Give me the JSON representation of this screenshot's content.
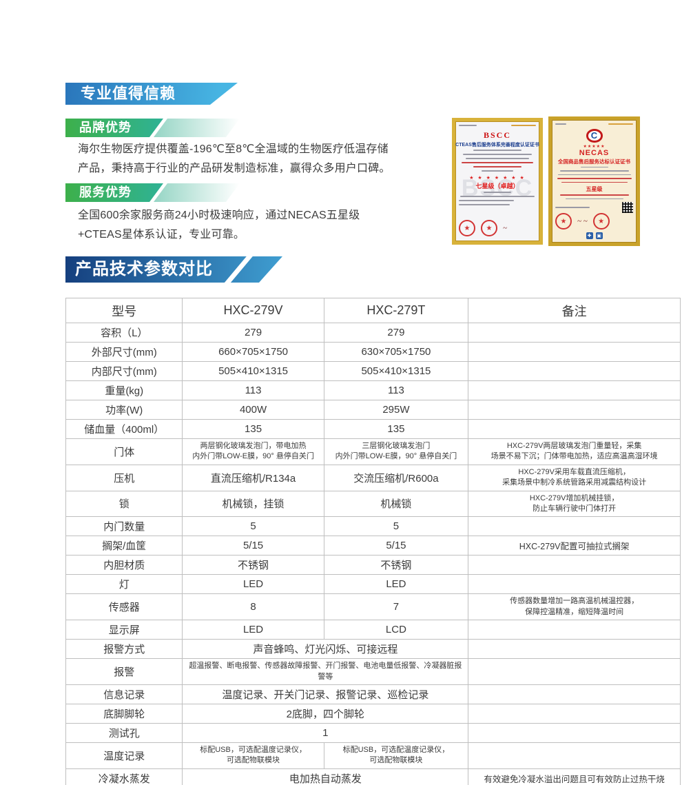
{
  "header": {
    "title_banner": "专业值得信赖",
    "brand": {
      "title": "品牌优势",
      "body": "海尔生物医疗提供覆盖-196℃至8℃全温域的生物医疗低温存储产品，秉持高于行业的产品研发制造标准，赢得众多用户口碑。"
    },
    "service": {
      "title": "服务优势",
      "body": "全国600余家服务商24小时极速响应，通过NECAS五星级+CTEAS星体系认证，专业可靠。"
    }
  },
  "certificates": {
    "bscc": {
      "brand": "BSCC",
      "title": "CTEAS售后服务体系完善程度认证证书",
      "stars": "★ ★ ★ ★ ★ ★ ★",
      "grade": "七星级（卓越）",
      "watermark": "BSCC",
      "stamp_star": "★"
    },
    "necas": {
      "emblem_letter": "C",
      "stars": "★★★★★",
      "brand": "NECAS",
      "title": "全国商品售后服务达标认证证书",
      "grade": "五星级",
      "stamp_star": "★"
    }
  },
  "table_section": {
    "banner": "产品技术参数对比"
  },
  "table": {
    "headers": [
      "型号",
      "HXC-279V",
      "HXC-279T",
      "备注"
    ],
    "rows": [
      {
        "label": "容积（L）",
        "v1": "279",
        "v2": "279",
        "remark": ""
      },
      {
        "label": "外部尺寸(mm)",
        "v1": "660×705×1750",
        "v2": "630×705×1750",
        "remark": ""
      },
      {
        "label": "内部尺寸(mm)",
        "v1": "505×410×1315",
        "v2": "505×410×1315",
        "remark": ""
      },
      {
        "label": "重量(kg)",
        "v1": "113",
        "v2": "113",
        "remark": ""
      },
      {
        "label": "功率(W)",
        "v1": "400W",
        "v2": "295W",
        "remark": ""
      },
      {
        "label": "储血量（400ml）",
        "v1": "135",
        "v2": "135",
        "remark": ""
      },
      {
        "label": "门体",
        "v1": "两层钢化玻璃发泡门，带电加热\n内外门带LOW-E膜，90° 悬停自关门",
        "v2": "三层钢化玻璃发泡门\n内外门带LOW-E膜，90° 悬停自关门",
        "remark": "HXC-279V两层玻璃发泡门重量轻，采集\n场景不易下沉；门体带电加热，适应高温高湿环境",
        "sm": true
      },
      {
        "label": "压机",
        "v1": "直流压缩机/R134a",
        "v2": "交流压缩机/R600a",
        "remark": "HXC-279V采用车载直流压缩机，\n采集场景中制冷系统管路采用减震结构设计"
      },
      {
        "label": "锁",
        "v1": "机械锁，挂锁",
        "v2": "机械锁",
        "remark": "HXC-279V增加机械挂锁，\n防止车辆行驶中门体打开"
      },
      {
        "label": "内门数量",
        "v1": "5",
        "v2": "5",
        "remark": ""
      },
      {
        "label": "搁架/血筐",
        "v1": "5/15",
        "v2": "5/15",
        "remark": "HXC-279V配置可抽拉式搁架"
      },
      {
        "label": "内胆材质",
        "v1": "不锈钢",
        "v2": "不锈钢",
        "remark": ""
      },
      {
        "label": "灯",
        "v1": "LED",
        "v2": "LED",
        "remark": ""
      },
      {
        "label": "传感器",
        "v1": "8",
        "v2": "7",
        "remark": "传感器数量增加一路高温机械温控器，\n保障控温精准，缩短降温时间"
      },
      {
        "label": "显示屏",
        "v1": "LED",
        "v2": "LCD",
        "remark": ""
      },
      {
        "label": "报警方式",
        "merged": "声音蜂鸣、灯光闪烁、可接远程",
        "remark": ""
      },
      {
        "label": "报警",
        "merged": "超温报警、断电报警、传感器故障报警、开门报警、电池电量低报警、冷凝器脏报警等",
        "remark": "",
        "sm": true
      },
      {
        "label": "信息记录",
        "merged": "温度记录、开关门记录、报警记录、巡检记录",
        "remark": ""
      },
      {
        "label": "底脚脚轮",
        "merged": "2底脚，四个脚轮",
        "remark": ""
      },
      {
        "label": "测试孔",
        "merged": "1",
        "remark": ""
      },
      {
        "label": "温度记录",
        "v1": "标配USB，可选配温度记录仪，\n可选配物联模块",
        "v2": "标配USB，可选配温度记录仪，\n可选配物联模块",
        "remark": "",
        "sm": true
      },
      {
        "label": "冷凝水蒸发",
        "merged": "电加热自动蒸发",
        "remark": "有效避免冷凝水溢出问题且可有效防止过热干烧"
      }
    ]
  },
  "colors": {
    "banner_blue_left": "#2a76bb",
    "banner_blue_right": "#47b5e3",
    "banner_green_left": "#3db04b",
    "banner_green_right": "#2fb295",
    "param_banner_left": "#153f7e",
    "param_banner_right": "#3f9ed1",
    "table_border": "#bfbfbf",
    "text": "#3b3b3b",
    "cert_gold": "#c9a22a",
    "cert_red": "#d42222"
  }
}
